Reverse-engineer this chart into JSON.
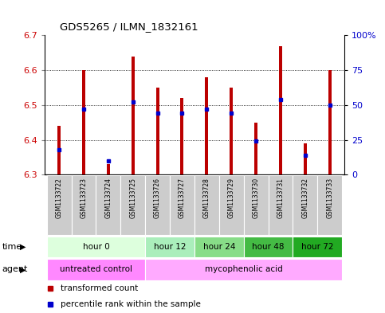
{
  "title": "GDS5265 / ILMN_1832161",
  "samples": [
    "GSM1133722",
    "GSM1133723",
    "GSM1133724",
    "GSM1133725",
    "GSM1133726",
    "GSM1133727",
    "GSM1133728",
    "GSM1133729",
    "GSM1133730",
    "GSM1133731",
    "GSM1133732",
    "GSM1133733"
  ],
  "transformed_count": [
    6.44,
    6.6,
    6.33,
    6.64,
    6.55,
    6.52,
    6.58,
    6.55,
    6.45,
    6.67,
    6.39,
    6.6
  ],
  "percentile_rank": [
    18,
    47,
    10,
    52,
    44,
    44,
    47,
    44,
    24,
    54,
    14,
    50
  ],
  "bar_bottom": 6.3,
  "ylim": [
    6.3,
    6.7
  ],
  "y_ticks": [
    6.3,
    6.4,
    6.5,
    6.6,
    6.7
  ],
  "right_yticks": [
    0,
    25,
    50,
    75,
    100
  ],
  "right_ytick_labels": [
    "0",
    "25",
    "50",
    "75",
    "100%"
  ],
  "bar_color": "#bb0000",
  "percentile_color": "#0000cc",
  "time_groups": [
    {
      "label": "hour 0",
      "samples": [
        0,
        1,
        2,
        3
      ],
      "color": "#ddffdd"
    },
    {
      "label": "hour 12",
      "samples": [
        4,
        5
      ],
      "color": "#aaeebb"
    },
    {
      "label": "hour 24",
      "samples": [
        6,
        7
      ],
      "color": "#88dd88"
    },
    {
      "label": "hour 48",
      "samples": [
        8,
        9
      ],
      "color": "#44bb44"
    },
    {
      "label": "hour 72",
      "samples": [
        10,
        11
      ],
      "color": "#22aa22"
    }
  ],
  "agent_groups": [
    {
      "label": "untreated control",
      "samples": [
        0,
        1,
        2,
        3
      ],
      "color": "#ff88ff"
    },
    {
      "label": "mycophenolic acid",
      "samples": [
        4,
        5,
        6,
        7,
        8,
        9,
        10,
        11
      ],
      "color": "#ffaaff"
    }
  ],
  "left_axis_color": "#cc0000",
  "right_axis_color": "#0000cc",
  "grid_color": "#000000",
  "sample_bg_color": "#cccccc",
  "plot_bg_color": "#ffffff",
  "legend_red_label": "transformed count",
  "legend_blue_label": "percentile rank within the sample",
  "fig_bg": "#ffffff"
}
